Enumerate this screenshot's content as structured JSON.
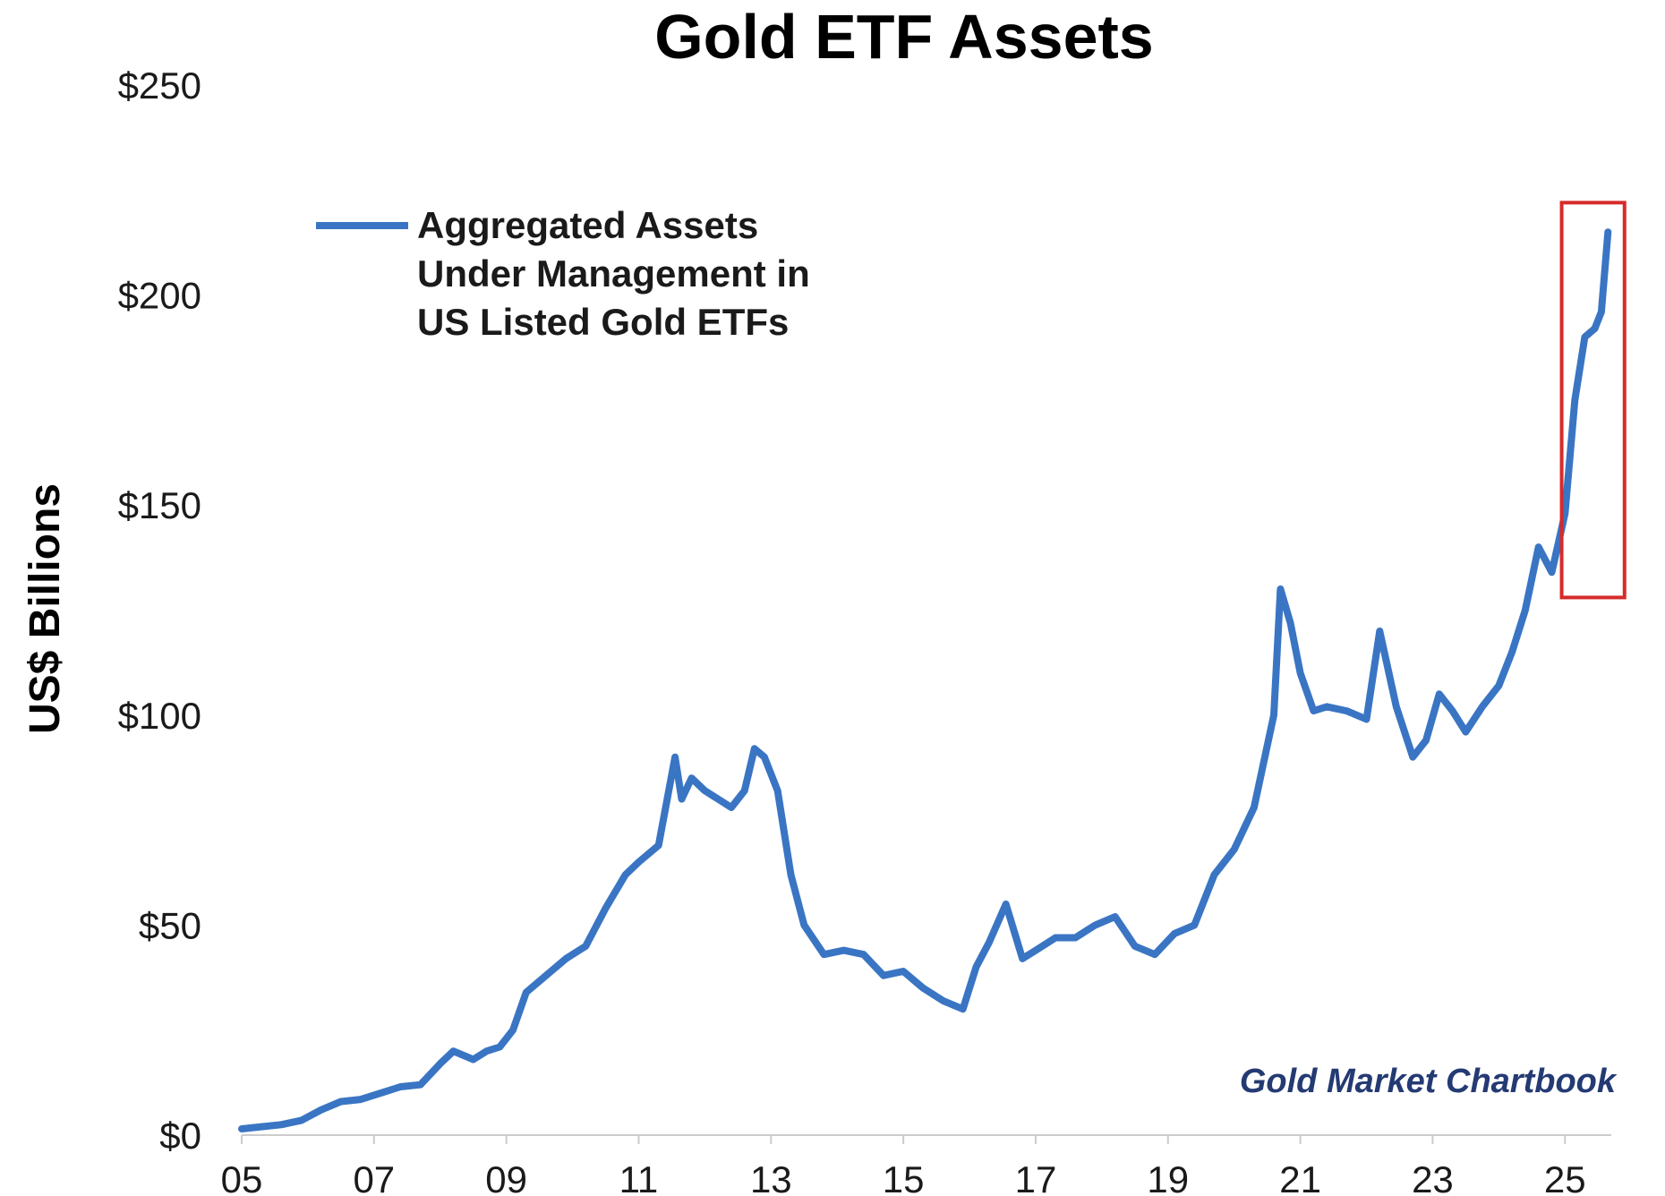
{
  "chart_data": {
    "type": "line",
    "title": "Gold ETF Assets",
    "ylabel": "US$ Billions",
    "xlabel": "",
    "xlim": [
      2005.0,
      2025.7
    ],
    "ylim": [
      0,
      250
    ],
    "y_ticks": [
      0,
      50,
      100,
      150,
      200,
      250
    ],
    "y_tick_labels": [
      "$0",
      "$50",
      "$100",
      "$150",
      "$200",
      "$250"
    ],
    "x_ticks": [
      2005,
      2007,
      2009,
      2011,
      2013,
      2015,
      2017,
      2019,
      2021,
      2023,
      2025
    ],
    "x_tick_labels": [
      "05",
      "07",
      "09",
      "11",
      "13",
      "15",
      "17",
      "19",
      "21",
      "23",
      "25"
    ],
    "grid": false,
    "legend_position": "top-left",
    "annotation": "Gold Market Chartbook",
    "colors": {
      "series": "#3a75c4",
      "highlight_box": "#d62b2b",
      "source_text": "#243a73",
      "axis": "#cccccc"
    },
    "highlight_range": {
      "x": [
        2024.95,
        2025.9
      ],
      "y": [
        128,
        222
      ]
    },
    "series": [
      {
        "name": "Aggregated Assets Under Management in US Listed Gold ETFs",
        "legend_lines": [
          "Aggregated Assets",
          "Under Management in",
          "US Listed Gold ETFs"
        ],
        "x": [
          2005.0,
          2005.3,
          2005.6,
          2005.9,
          2006.2,
          2006.5,
          2006.8,
          2007.1,
          2007.4,
          2007.7,
          2008.0,
          2008.2,
          2008.5,
          2008.7,
          2008.9,
          2009.1,
          2009.3,
          2009.6,
          2009.9,
          2010.2,
          2010.5,
          2010.8,
          2011.0,
          2011.3,
          2011.55,
          2011.65,
          2011.8,
          2012.0,
          2012.2,
          2012.4,
          2012.6,
          2012.75,
          2012.9,
          2013.1,
          2013.3,
          2013.5,
          2013.8,
          2014.1,
          2014.4,
          2014.7,
          2015.0,
          2015.3,
          2015.6,
          2015.9,
          2016.1,
          2016.3,
          2016.55,
          2016.8,
          2017.0,
          2017.3,
          2017.6,
          2017.9,
          2018.2,
          2018.5,
          2018.8,
          2019.1,
          2019.4,
          2019.7,
          2020.0,
          2020.3,
          2020.6,
          2020.7,
          2020.85,
          2021.0,
          2021.2,
          2021.4,
          2021.7,
          2022.0,
          2022.2,
          2022.45,
          2022.7,
          2022.9,
          2023.1,
          2023.3,
          2023.5,
          2023.75,
          2024.0,
          2024.2,
          2024.4,
          2024.6,
          2024.8,
          2025.0,
          2025.15,
          2025.3,
          2025.45,
          2025.55,
          2025.65
        ],
        "y": [
          1.5,
          2.0,
          2.5,
          3.5,
          6.0,
          8.0,
          8.5,
          10.0,
          11.5,
          12.0,
          17.0,
          20.0,
          18.0,
          20.0,
          21.0,
          25.0,
          34.0,
          38.0,
          42.0,
          45.0,
          54.0,
          62.0,
          65.0,
          69.0,
          90.0,
          80.0,
          85.0,
          82.0,
          80.0,
          78.0,
          82.0,
          92.0,
          90.0,
          82.0,
          62.0,
          50.0,
          43.0,
          44.0,
          43.0,
          38.0,
          39.0,
          35.0,
          32.0,
          30.0,
          40.0,
          46.0,
          55.0,
          42.0,
          44.0,
          47.0,
          47.0,
          50.0,
          52.0,
          45.0,
          43.0,
          48.0,
          50.0,
          62.0,
          68.0,
          78.0,
          100.0,
          130.0,
          122.0,
          110.0,
          101.0,
          102.0,
          101.0,
          99.0,
          120.0,
          102.0,
          90.0,
          94.0,
          105.0,
          101.0,
          96.0,
          102.0,
          107.0,
          115.0,
          125.0,
          140.0,
          134.0,
          148.0,
          175.0,
          190.0,
          192.0,
          196.0,
          215.0
        ]
      }
    ]
  }
}
